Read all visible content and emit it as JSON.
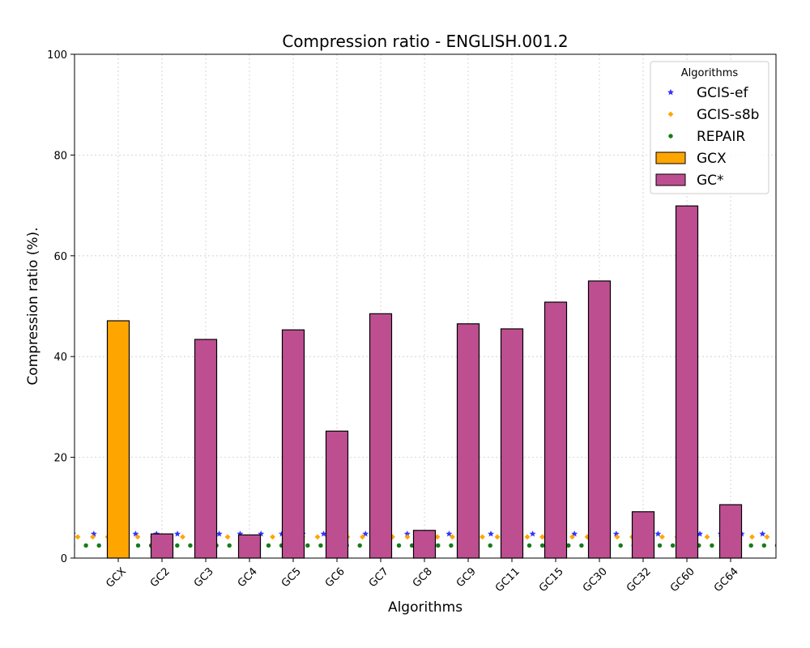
{
  "chart_data": {
    "type": "bar",
    "title": "Compression ratio -  ENGLISH.001.2",
    "xlabel": "Algorithms",
    "ylabel": "Compression ratio (%).",
    "ylim": [
      0,
      100
    ],
    "yticks": [
      0,
      20,
      40,
      60,
      80,
      100
    ],
    "grid": true,
    "categories": [
      "GCX",
      "GC2",
      "GC3",
      "GC4",
      "GC5",
      "GC6",
      "GC7",
      "GC8",
      "GC9",
      "GC11",
      "GC15",
      "GC30",
      "GC32",
      "GC60",
      "GC64"
    ],
    "series": [
      {
        "name": "GCX",
        "kind": "bar",
        "color": "#FFA500",
        "values": [
          47.1,
          null,
          null,
          null,
          null,
          null,
          null,
          null,
          null,
          null,
          null,
          null,
          null,
          null,
          null
        ]
      },
      {
        "name": "GC*",
        "kind": "bar",
        "color": "#BD4F91",
        "values": [
          null,
          4.8,
          43.4,
          4.6,
          45.3,
          25.2,
          48.5,
          5.5,
          46.5,
          45.5,
          50.8,
          55.0,
          9.2,
          69.9,
          10.6
        ]
      },
      {
        "name": "GCIS-ef",
        "kind": "reference-line",
        "marker": "star",
        "color": "#3333FF",
        "value": 4.8
      },
      {
        "name": "GCIS-s8b",
        "kind": "reference-line",
        "marker": "diamond",
        "color": "#FFA500",
        "value": 4.2
      },
      {
        "name": "REPAIR",
        "kind": "reference-line",
        "marker": "circle",
        "color": "#1A7A1A",
        "value": 2.5
      }
    ],
    "legend": {
      "title": "Algorithms",
      "placement": "top-right",
      "entries": [
        "GCIS-ef",
        "GCIS-s8b",
        "REPAIR",
        "GCX",
        "GC*"
      ]
    }
  }
}
